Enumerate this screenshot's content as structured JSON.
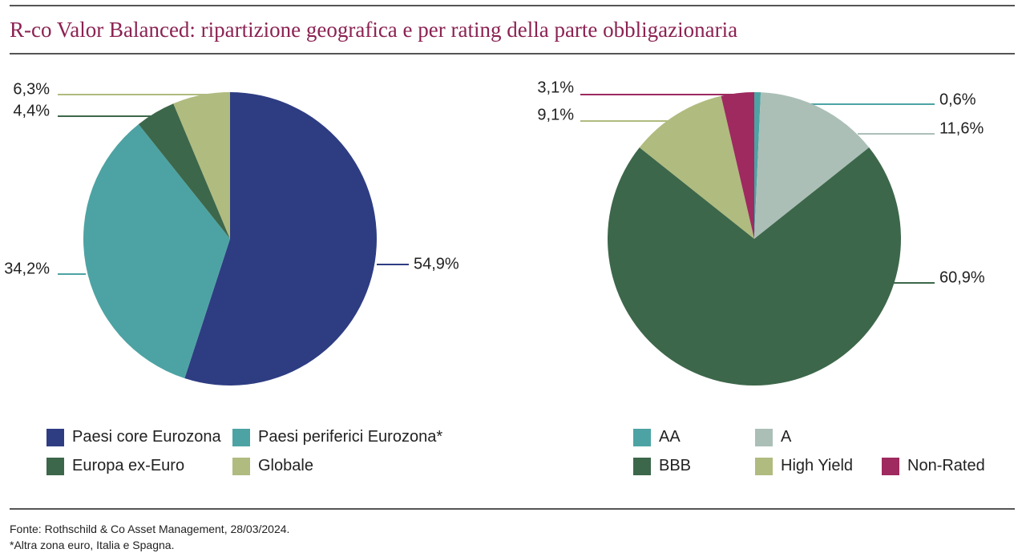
{
  "title": "R-co Valor Balanced: ripartizione geografica e per rating della parte obbligazionaria",
  "chart_data": [
    {
      "type": "pie",
      "slices": [
        {
          "name": "Paesi core Eurozona",
          "value": 54.9,
          "label": "54,9%",
          "color": "#2e3d82"
        },
        {
          "name": "Paesi periferici Eurozona*",
          "value": 34.2,
          "label": "34,2%",
          "color": "#4da3a3"
        },
        {
          "name": "Europa ex-Euro",
          "value": 4.4,
          "label": "4,4%",
          "color": "#3d674a"
        },
        {
          "name": "Globale",
          "value": 6.3,
          "label": "6,3%",
          "color": "#b0bb7f"
        }
      ]
    },
    {
      "type": "pie",
      "slices": [
        {
          "name": "AA",
          "value": 0.6,
          "label": "0,6%",
          "color": "#4da3a3"
        },
        {
          "name": "A",
          "value": 11.6,
          "label": "11,6%",
          "color": "#abbfb7"
        },
        {
          "name": "BBB",
          "value": 60.9,
          "label": "60,9%",
          "color": "#3d674a"
        },
        {
          "name": "High Yield",
          "value": 9.1,
          "label": "9,1%",
          "color": "#b0bb7f"
        },
        {
          "name": "Non-Rated",
          "value": 3.1,
          "label": "3,1%",
          "color": "#9e2a5f"
        }
      ]
    }
  ],
  "footer": {
    "source": "Fonte: Rothschild & Co Asset Management, 28/03/2024.",
    "note": "*Altra zona euro, Italia e Spagna."
  }
}
